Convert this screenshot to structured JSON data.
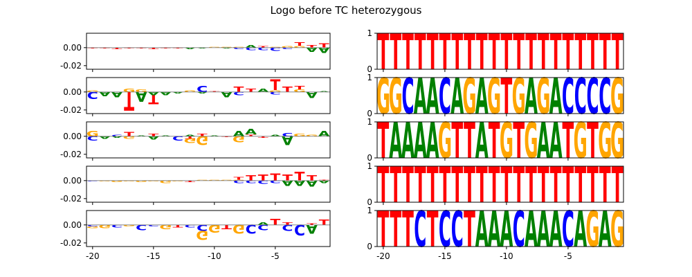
{
  "title": "Logo before TC heterozygous",
  "colors": {
    "A": "#008000",
    "C": "#0000ff",
    "G": "#ffa500",
    "T": "#ff0000",
    "axis": "#000000"
  },
  "chart_data": {
    "type": "sequence-logo",
    "positions": [
      -20,
      -19,
      -18,
      -17,
      -16,
      -15,
      -14,
      -13,
      -12,
      -11,
      -10,
      -9,
      -8,
      -7,
      -6,
      -5,
      -4,
      -3,
      -2,
      -1
    ],
    "x_ticks": [
      -20,
      -15,
      -10,
      -5
    ],
    "x_tick_labels": [
      "-20",
      "-15",
      "-10",
      "-5"
    ],
    "left_ylim": [
      -0.024,
      0.016
    ],
    "left_yticks": [
      0.0,
      -0.02
    ],
    "left_ytick_labels": [
      "0.00",
      "-0.02"
    ],
    "right_ylim": [
      0,
      1
    ],
    "right_yticks": [
      0,
      1
    ],
    "right_ytick_labels": [
      "0",
      "1"
    ],
    "left_panels": [
      [
        [
          0,
          0,
          0,
          -0.001
        ],
        [
          0,
          0,
          0,
          -0.001
        ],
        [
          0,
          0,
          0,
          -0.002
        ],
        [
          0,
          0,
          0,
          -0.001
        ],
        [
          0,
          0,
          0,
          -0.001
        ],
        [
          0,
          0,
          0,
          -0.002
        ],
        [
          0,
          0,
          0,
          -0.001
        ],
        [
          0,
          0,
          0,
          -0.001
        ],
        [
          -0.002,
          0,
          0,
          0
        ],
        [
          -0.001,
          0,
          0,
          0
        ],
        [
          0,
          0,
          0.001,
          0
        ],
        [
          -0.001,
          0,
          0.001,
          0
        ],
        [
          0,
          -0.002,
          0.001,
          0
        ],
        [
          0.003,
          -0.003,
          0,
          0
        ],
        [
          0,
          -0.003,
          0,
          0.002
        ],
        [
          0,
          -0.004,
          0.001,
          0
        ],
        [
          0,
          -0.002,
          0.002,
          0
        ],
        [
          0,
          0,
          0.002,
          0.004
        ],
        [
          -0.005,
          0,
          0,
          0.003
        ],
        [
          -0.006,
          0,
          0,
          0.005
        ]
      ],
      [
        [
          0,
          -0.008,
          0.002,
          0
        ],
        [
          -0.005,
          0,
          0,
          0
        ],
        [
          -0.006,
          0,
          0,
          0
        ],
        [
          0,
          0,
          0.004,
          -0.021
        ],
        [
          -0.011,
          0,
          0.003,
          0
        ],
        [
          -0.004,
          0,
          0,
          -0.01
        ],
        [
          -0.004,
          0,
          0,
          0
        ],
        [
          -0.002,
          0,
          0,
          0
        ],
        [
          0,
          0,
          0.002,
          0
        ],
        [
          -0.002,
          0.007,
          0,
          0
        ],
        [
          0,
          0,
          0,
          0.001
        ],
        [
          -0.006,
          0,
          0,
          0
        ],
        [
          0,
          -0.004,
          0,
          0.006
        ],
        [
          0,
          0,
          0,
          0.004
        ],
        [
          0.004,
          0,
          0,
          0
        ],
        [
          0,
          -0.003,
          0.002,
          0.012
        ],
        [
          0,
          0,
          0,
          0.006
        ],
        [
          0,
          0,
          0.003,
          0.004
        ],
        [
          -0.007,
          0,
          0,
          0
        ],
        [
          0.001,
          0,
          0,
          0
        ]
      ],
      [
        [
          0,
          -0.005,
          0.006,
          0
        ],
        [
          -0.003,
          0,
          0,
          0
        ],
        [
          -0.002,
          0.002,
          0,
          0
        ],
        [
          0,
          0,
          -0.003,
          0.005
        ],
        [
          0.001,
          0,
          0,
          0
        ],
        [
          -0.004,
          0,
          0,
          0.003
        ],
        [
          0.001,
          0,
          0,
          0
        ],
        [
          0,
          -0.005,
          0,
          0
        ],
        [
          0.002,
          0,
          -0.005,
          -0.003
        ],
        [
          0,
          0,
          -0.01,
          0.003
        ],
        [
          0.001,
          0,
          0,
          0
        ],
        [
          0,
          0,
          0,
          -0.001
        ],
        [
          0.006,
          0,
          -0.007,
          0
        ],
        [
          0.006,
          0,
          0,
          0.002
        ],
        [
          0,
          0,
          0,
          -0.002
        ],
        [
          0.002,
          0,
          0,
          0
        ],
        [
          -0.01,
          0.004,
          0,
          0
        ],
        [
          0,
          0,
          0.003,
          0
        ],
        [
          0,
          0,
          0.002,
          0
        ],
        [
          0.006,
          0,
          0,
          0
        ]
      ],
      [
        [
          0,
          -0.001,
          0,
          0
        ],
        [
          0,
          0,
          -0.001,
          0
        ],
        [
          0,
          0,
          -0.002,
          0
        ],
        [
          0,
          0,
          -0.001,
          0
        ],
        [
          0,
          0,
          -0.002,
          0
        ],
        [
          0,
          0,
          -0.001,
          0
        ],
        [
          0,
          0,
          -0.003,
          0
        ],
        [
          0,
          0,
          -0.001,
          0
        ],
        [
          0,
          0,
          0,
          -0.002
        ],
        [
          0,
          0,
          0.001,
          0
        ],
        [
          0,
          0,
          0.001,
          0
        ],
        [
          0,
          0,
          0.001,
          0
        ],
        [
          0,
          -0.003,
          0.001,
          0.003
        ],
        [
          0,
          -0.003,
          0,
          0.006
        ],
        [
          0,
          -0.004,
          0,
          0.007
        ],
        [
          0,
          -0.003,
          0,
          0.008
        ],
        [
          -0.006,
          0,
          0,
          0.007
        ],
        [
          -0.006,
          0,
          0,
          0.01
        ],
        [
          -0.007,
          0,
          0,
          0.006
        ],
        [
          -0.003,
          0,
          0,
          0.001
        ]
      ],
      [
        [
          0,
          -0.002,
          -0.002,
          0
        ],
        [
          0,
          0,
          -0.004,
          0
        ],
        [
          0,
          -0.003,
          0,
          0
        ],
        [
          0,
          0,
          -0.002,
          0
        ],
        [
          0,
          -0.006,
          0,
          0
        ],
        [
          0,
          -0.002,
          0,
          0
        ],
        [
          0,
          0,
          -0.005,
          0
        ],
        [
          0,
          0,
          0,
          -0.003
        ],
        [
          0,
          -0.003,
          0,
          0
        ],
        [
          0,
          -0.007,
          -0.01,
          0
        ],
        [
          0,
          0,
          -0.009,
          0
        ],
        [
          0,
          0,
          0,
          -0.005
        ],
        [
          0,
          0,
          -0.01,
          0
        ],
        [
          0,
          -0.01,
          0,
          0
        ],
        [
          0.003,
          -0.006,
          0,
          0
        ],
        [
          0,
          0,
          0,
          0.007
        ],
        [
          0,
          -0.007,
          0,
          0.003
        ],
        [
          0,
          -0.012,
          0,
          0
        ],
        [
          -0.01,
          0,
          0,
          0.002
        ],
        [
          0,
          0,
          0,
          0.006
        ]
      ]
    ],
    "right_panels": [
      "TTTTTTTTTTTTTTTTTTTT",
      "GGCAACAGAGTGAGACCCCG",
      "TAAAAGTTATGTGAATGTGG",
      "TTTTTTTTTTTTTTTTTTTT",
      "TTTCTCCTAAACAAACAGAG"
    ]
  }
}
